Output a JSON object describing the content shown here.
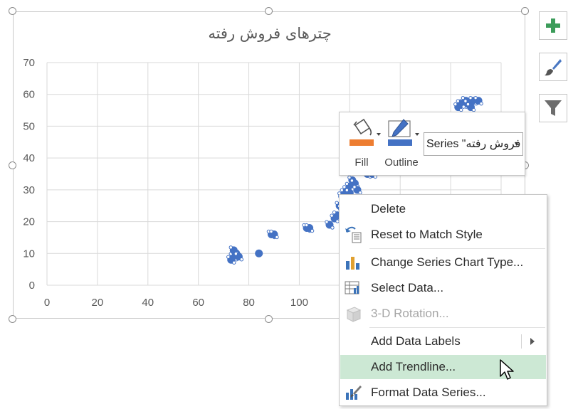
{
  "chart": {
    "title": "چترهای فروش رفته",
    "accent_color": "#4472c4",
    "selection_handles": true
  },
  "chart_data": {
    "type": "scatter",
    "title": "چترهای فروش رفته",
    "xlabel": "",
    "ylabel": "",
    "xlim": [
      0,
      180
    ],
    "ylim": [
      0,
      70
    ],
    "x_ticks": [
      "0",
      "20",
      "40",
      "60",
      "80",
      "100"
    ],
    "y_ticks": [
      "70",
      "60",
      "50",
      "40",
      "30",
      "20",
      "10",
      "0"
    ],
    "grid": true,
    "series": [
      {
        "color": "#4472c4",
        "points": [
          [
            73,
            8
          ],
          [
            74,
            9
          ],
          [
            75,
            10
          ],
          [
            74,
            11
          ],
          [
            76,
            9
          ],
          [
            84,
            10
          ],
          [
            89,
            16
          ],
          [
            90,
            16
          ],
          [
            103,
            18
          ],
          [
            104,
            18
          ],
          [
            112,
            19
          ],
          [
            114,
            21
          ],
          [
            115,
            22
          ],
          [
            116,
            25
          ],
          [
            117,
            24
          ],
          [
            118,
            26
          ],
          [
            117,
            28
          ],
          [
            118,
            29
          ],
          [
            119,
            30
          ],
          [
            120,
            31
          ],
          [
            121,
            33
          ],
          [
            122,
            32
          ],
          [
            123,
            30
          ],
          [
            120,
            29
          ],
          [
            127,
            35
          ],
          [
            129,
            35
          ],
          [
            163,
            56
          ],
          [
            165,
            57
          ],
          [
            166,
            58
          ],
          [
            167,
            57
          ],
          [
            169,
            58
          ],
          [
            171,
            58
          ],
          [
            164,
            57
          ],
          [
            168,
            56
          ]
        ]
      }
    ]
  },
  "side_buttons": {
    "add_icon": "plus-icon",
    "style_icon": "paintbrush-icon",
    "filter_icon": "funnel-icon"
  },
  "mini_toolbar": {
    "fill_label": "Fill",
    "outline_label": "Outline",
    "fill_color": "#ed7d31",
    "outline_color": "#4472c4",
    "series_select_value": "Series \"چترهای فروش رفته\""
  },
  "context_menu": {
    "items": [
      {
        "label": "Delete",
        "icon": ""
      },
      {
        "label": "Reset to Match Style",
        "icon": "reset-style-icon"
      },
      {
        "label": "Change Series Chart Type...",
        "icon": "chart-type-icon"
      },
      {
        "label": "Select Data...",
        "icon": "select-data-icon"
      },
      {
        "label": "3-D Rotation...",
        "icon": "rotation-3d-icon",
        "disabled": true
      },
      {
        "label": "Add Data Labels",
        "icon": "",
        "submenu": true
      },
      {
        "label": "Add Trendline...",
        "icon": "",
        "highlighted": true
      },
      {
        "label": "Format Data Series...",
        "icon": "format-series-icon"
      }
    ]
  }
}
